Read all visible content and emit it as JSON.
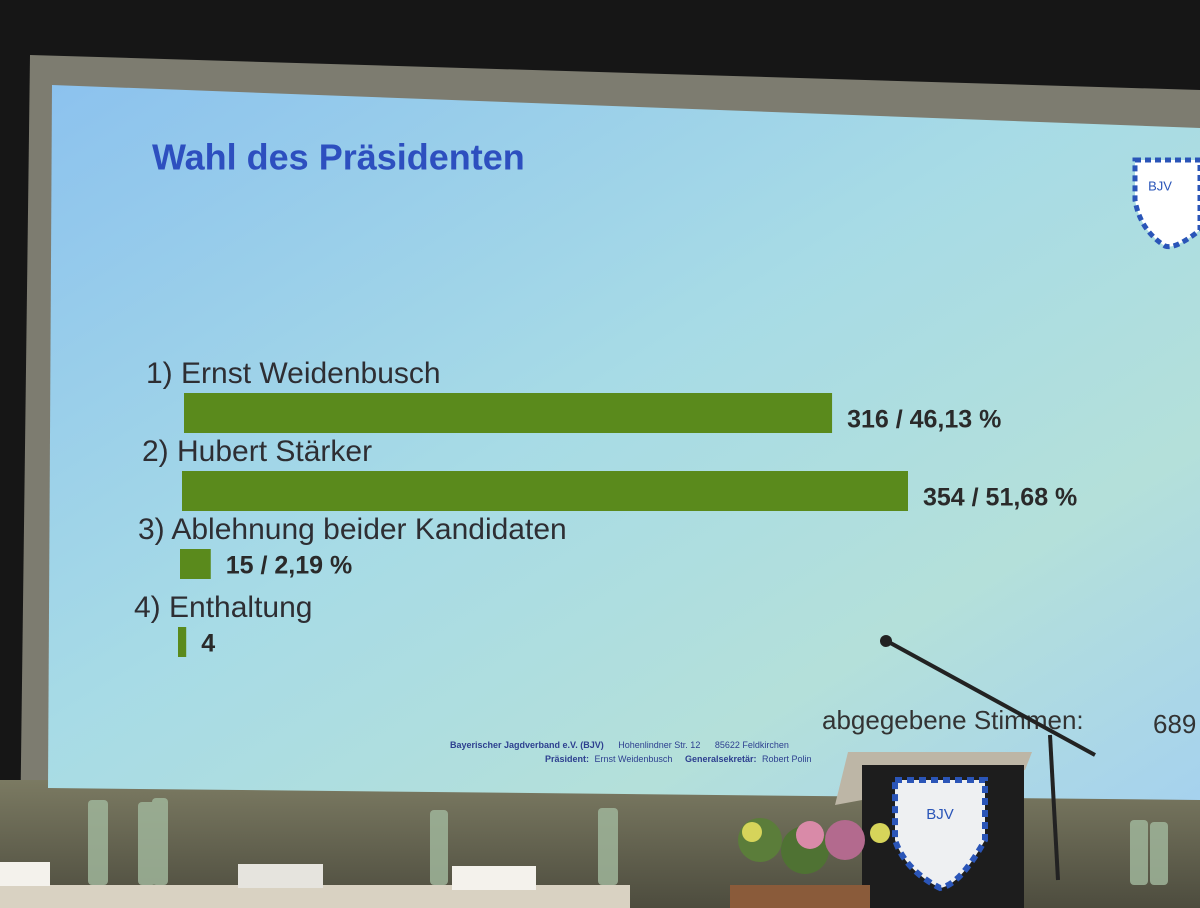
{
  "chart_data": {
    "type": "bar",
    "orientation": "horizontal",
    "title": "Wahl des Präsidenten",
    "categories": [
      "1) Ernst Weidenbusch",
      "2) Hubert Stärker",
      "3) Ablehnung beider Kandidaten",
      "4) Enthaltung"
    ],
    "values": [
      316,
      354,
      15,
      4
    ],
    "value_labels": [
      "316 / 46,13 %",
      "354 / 51,68 %",
      "15 / 2,19 %",
      "4"
    ],
    "color": "#5a8a1c",
    "total_label": "abgegebene Stimmen:",
    "total": 689,
    "logo_text": "BJV",
    "footer": {
      "org": "Bayerischer Jagdverband e.V. (BJV)",
      "street": "Hohenlindner Str. 12",
      "city": "85622 Feldkirchen",
      "president_label": "Präsident:",
      "president": "Ernst Weidenbusch",
      "secretary_label": "Generalsekretär:",
      "secretary": "Robert Polin"
    }
  }
}
